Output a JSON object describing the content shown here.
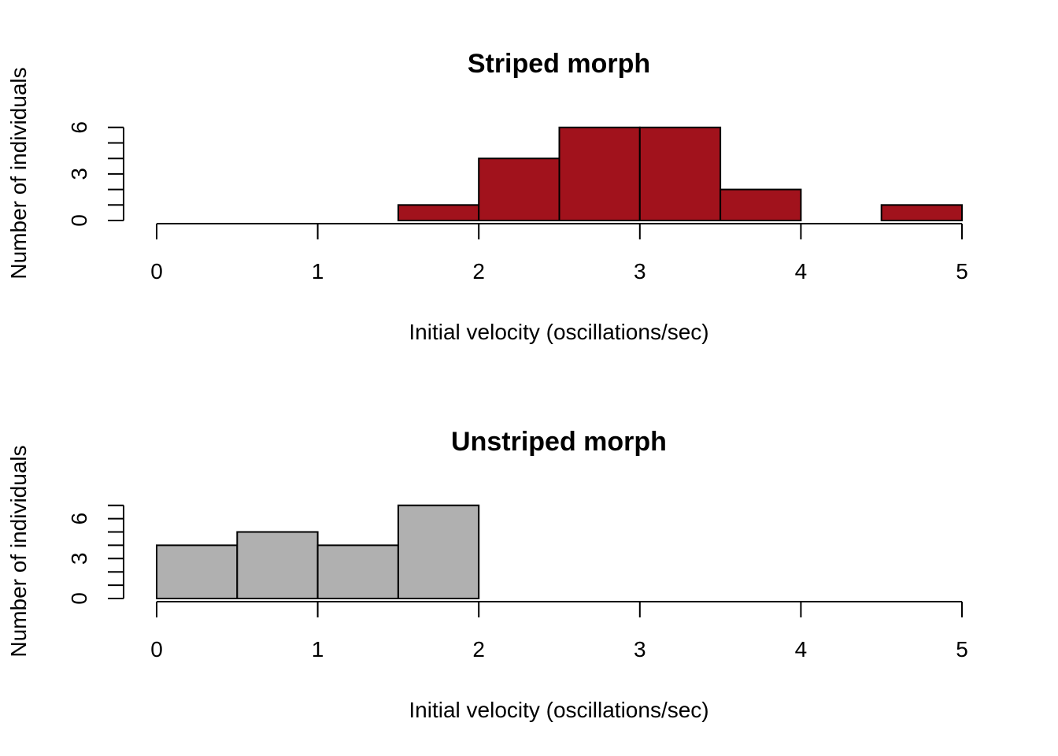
{
  "chart_data": [
    {
      "type": "bar",
      "subtype": "histogram",
      "title": "Striped morph",
      "xlabel": "Initial velocity (oscillations/sec)",
      "ylabel": "Number of individuals",
      "xlim": [
        0,
        5
      ],
      "ylim": [
        0,
        6
      ],
      "x_ticks": [
        "0",
        "1",
        "2",
        "3",
        "4",
        "5"
      ],
      "y_ticks": [
        "0",
        "3",
        "6"
      ],
      "grid": false,
      "color": "#a1121c",
      "bins": [
        {
          "start": 1.5,
          "end": 2.0,
          "count": 1
        },
        {
          "start": 2.0,
          "end": 2.5,
          "count": 4
        },
        {
          "start": 2.5,
          "end": 3.0,
          "count": 6
        },
        {
          "start": 3.0,
          "end": 3.5,
          "count": 6
        },
        {
          "start": 3.5,
          "end": 4.0,
          "count": 2
        },
        {
          "start": 4.0,
          "end": 4.5,
          "count": 0
        },
        {
          "start": 4.5,
          "end": 5.0,
          "count": 1
        }
      ]
    },
    {
      "type": "bar",
      "subtype": "histogram",
      "title": "Unstriped morph",
      "xlabel": "Initial velocity (oscillations/sec)",
      "ylabel": "Number of individuals",
      "xlim": [
        0,
        5
      ],
      "ylim": [
        0,
        7
      ],
      "x_ticks": [
        "0",
        "1",
        "2",
        "3",
        "4",
        "5"
      ],
      "y_ticks": [
        "0",
        "3",
        "6"
      ],
      "grid": false,
      "color": "#b0b0b0",
      "bins": [
        {
          "start": 0.0,
          "end": 0.5,
          "count": 4
        },
        {
          "start": 0.5,
          "end": 1.0,
          "count": 5
        },
        {
          "start": 1.0,
          "end": 1.5,
          "count": 4
        },
        {
          "start": 1.5,
          "end": 2.0,
          "count": 7
        }
      ]
    }
  ]
}
